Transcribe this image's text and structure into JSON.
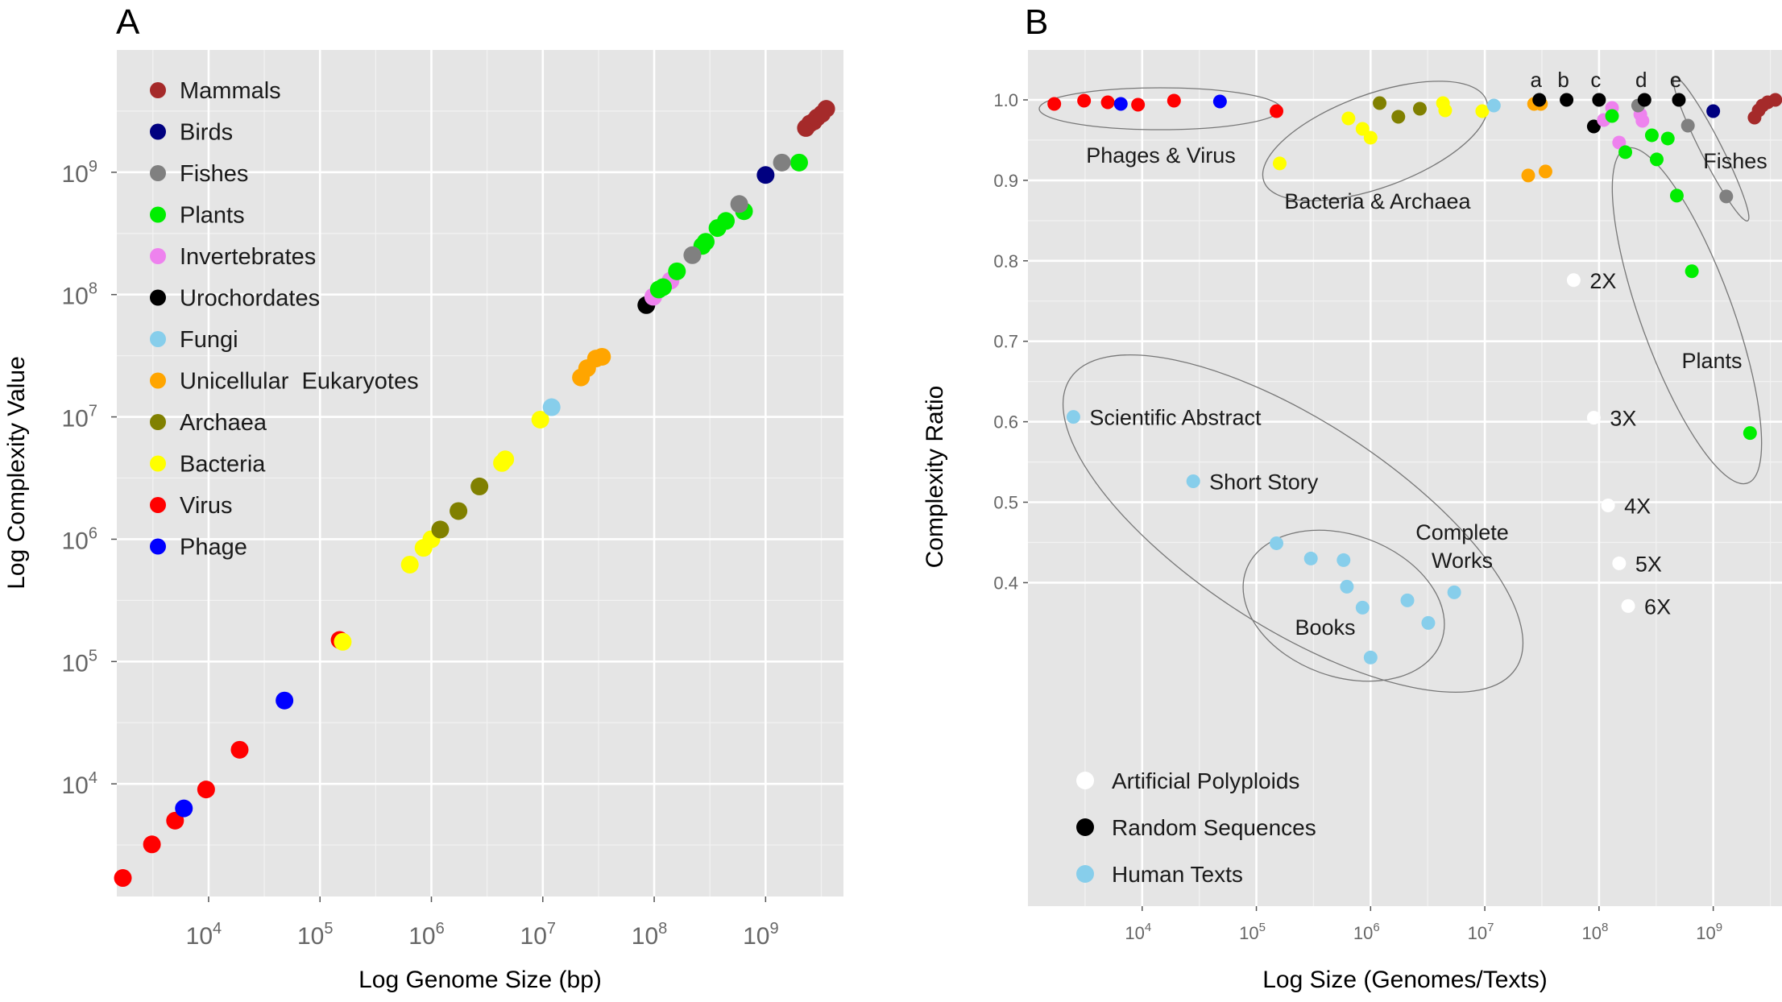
{
  "colors": {
    "Mammals": "#a52a2a",
    "Birds": "#000080",
    "Fishes": "#808080",
    "Plants": "#00ee00",
    "Invertebrates": "#ee82ee",
    "Urochordates": "#000000",
    "Fungi": "#87ceeb",
    "Unicellular Eukaryotes": "#ffa500",
    "Archaea": "#808000",
    "Bacteria": "#ffff00",
    "Virus": "#ff0000",
    "Phage": "#0000ff",
    "Artificial Polyploids": "#ffffff",
    "Random Sequences": "#000000",
    "Human Texts": "#87ceeb",
    "panel_bg": "#e5e5e5",
    "grid": "#ffffff"
  },
  "chart_data": [
    {
      "panel_label": "A",
      "type": "scatter",
      "xlabel": "Log Genome Size (bp)",
      "ylabel": "Log Complexity Value",
      "x_scale": "log10",
      "y_scale": "log10",
      "xlim": [
        1500,
        5000000000
      ],
      "ylim": [
        1200,
        10000000000
      ],
      "x_ticks": [
        {
          "value": 10000,
          "base": "10",
          "exp": "4"
        },
        {
          "value": 100000,
          "base": "10",
          "exp": "5"
        },
        {
          "value": 1000000,
          "base": "10",
          "exp": "6"
        },
        {
          "value": 10000000,
          "base": "10",
          "exp": "7"
        },
        {
          "value": 100000000,
          "base": "10",
          "exp": "8"
        },
        {
          "value": 1000000000,
          "base": "10",
          "exp": "9"
        }
      ],
      "y_ticks": [
        {
          "value": 10000,
          "base": "10",
          "exp": "4"
        },
        {
          "value": 100000,
          "base": "10",
          "exp": "5"
        },
        {
          "value": 1000000,
          "base": "10",
          "exp": "6"
        },
        {
          "value": 10000000,
          "base": "10",
          "exp": "7"
        },
        {
          "value": 100000000,
          "base": "10",
          "exp": "8"
        },
        {
          "value": 1000000000,
          "base": "10",
          "exp": "9"
        }
      ],
      "legend": {
        "placement": "top-left",
        "entries": [
          "Mammals",
          "Birds",
          "Fishes",
          "Plants",
          "Invertebrates",
          "Urochordates",
          "Fungi",
          "Unicellular  Eukaryotes",
          "Archaea",
          "Bacteria",
          "Virus",
          "Phage"
        ],
        "keys": [
          "Mammals",
          "Birds",
          "Fishes",
          "Plants",
          "Invertebrates",
          "Urochordates",
          "Fungi",
          "Unicellular Eukaryotes",
          "Archaea",
          "Bacteria",
          "Virus",
          "Phage"
        ]
      },
      "series": [
        {
          "name": "Virus",
          "points": [
            [
              1700,
              1700
            ],
            [
              3100,
              3200
            ],
            [
              5000,
              5000
            ],
            [
              9500,
              9000
            ],
            [
              19000,
              19000
            ],
            [
              150000,
              150000
            ]
          ]
        },
        {
          "name": "Phage",
          "points": [
            [
              6000,
              6300
            ],
            [
              48000,
              48000
            ]
          ]
        },
        {
          "name": "Bacteria",
          "points": [
            [
              160000,
              145000
            ],
            [
              640000,
              620000
            ],
            [
              850000,
              850000
            ],
            [
              1000000,
              1000000
            ],
            [
              4300000,
              4200000
            ],
            [
              4600000,
              4500000
            ],
            [
              9500000,
              9500000
            ]
          ]
        },
        {
          "name": "Archaea",
          "points": [
            [
              1200000,
              1200000
            ],
            [
              1750000,
              1700000
            ],
            [
              2700000,
              2700000
            ]
          ]
        },
        {
          "name": "Fungi",
          "points": [
            [
              12000000,
              12000000
            ]
          ]
        },
        {
          "name": "Unicellular Eukaryotes",
          "points": [
            [
              22000000,
              21000000
            ],
            [
              25000000,
              25000000
            ],
            [
              30000000,
              30000000
            ],
            [
              34000000,
              31000000
            ]
          ]
        },
        {
          "name": "Urochordates",
          "points": [
            [
              85000000,
              82000000
            ]
          ]
        },
        {
          "name": "Invertebrates",
          "points": [
            [
              98000000,
              96000000
            ],
            [
              140000000,
              130000000
            ]
          ]
        },
        {
          "name": "Plants",
          "points": [
            [
              110000000,
              110000000
            ],
            [
              120000000,
              115000000
            ],
            [
              160000000,
              155000000
            ],
            [
              270000000,
              250000000
            ],
            [
              290000000,
              270000000
            ],
            [
              370000000,
              350000000
            ],
            [
              440000000,
              400000000
            ],
            [
              640000000,
              480000000
            ],
            [
              2000000000,
              1200000000
            ]
          ]
        },
        {
          "name": "Fishes",
          "points": [
            [
              220000000,
              210000000
            ],
            [
              580000000,
              550000000
            ],
            [
              1400000000,
              1200000000
            ]
          ]
        },
        {
          "name": "Birds",
          "points": [
            [
              1000000000,
              950000000
            ]
          ]
        },
        {
          "name": "Mammals",
          "points": [
            [
              2300000000,
              2300000000
            ],
            [
              2500000000,
              2500000000
            ],
            [
              2700000000,
              2600000000
            ],
            [
              2900000000,
              2800000000
            ],
            [
              3200000000,
              3000000000
            ],
            [
              3500000000,
              3300000000
            ]
          ]
        }
      ]
    },
    {
      "panel_label": "B",
      "type": "scatter",
      "xlabel": "Log Size (Genomes/Texts)",
      "ylabel": "Complexity Ratio",
      "x_scale": "log10",
      "y_scale": "linear",
      "xlim": [
        1000,
        4000000000
      ],
      "ylim": [
        0,
        1.04
      ],
      "x_ticks": [
        {
          "value": 10000,
          "base": "10",
          "exp": "4"
        },
        {
          "value": 100000,
          "base": "10",
          "exp": "5"
        },
        {
          "value": 1000000,
          "base": "10",
          "exp": "6"
        },
        {
          "value": 10000000,
          "base": "10",
          "exp": "7"
        },
        {
          "value": 100000000,
          "base": "10",
          "exp": "8"
        },
        {
          "value": 1000000000,
          "base": "10",
          "exp": "9"
        }
      ],
      "y_ticks": [
        {
          "value": 0.4,
          "label": "0.4"
        },
        {
          "value": 0.5,
          "label": "0.5"
        },
        {
          "value": 0.6,
          "label": "0.6"
        },
        {
          "value": 0.7,
          "label": "0.7"
        },
        {
          "value": 0.8,
          "label": "0.8"
        },
        {
          "value": 0.9,
          "label": "0.9"
        },
        {
          "value": 1.0,
          "label": "1.0"
        }
      ],
      "legend": {
        "placement": "bottom-left",
        "entries": [
          "Artificial Polyploids",
          "Random Sequences",
          "Human Texts"
        ],
        "keys": [
          "Artificial Polyploids",
          "Random Sequences",
          "Human Texts"
        ]
      },
      "series": [
        {
          "name": "Virus",
          "points": [
            [
              1700,
              0.995
            ],
            [
              3100,
              0.999
            ],
            [
              5000,
              0.997
            ],
            [
              9200,
              0.994
            ],
            [
              19000,
              0.999
            ],
            [
              150000,
              0.986
            ]
          ]
        },
        {
          "name": "Phage",
          "points": [
            [
              6500,
              0.995
            ],
            [
              48000,
              0.998
            ]
          ]
        },
        {
          "name": "Bacteria",
          "points": [
            [
              160000,
              0.921
            ],
            [
              640000,
              0.977
            ],
            [
              850000,
              0.964
            ],
            [
              1000000,
              0.953
            ],
            [
              4300000,
              0.996
            ],
            [
              4500000,
              0.987
            ],
            [
              9500000,
              0.986
            ]
          ]
        },
        {
          "name": "Archaea",
          "points": [
            [
              1200000,
              0.996
            ],
            [
              1750000,
              0.979
            ],
            [
              2700000,
              0.989
            ]
          ]
        },
        {
          "name": "Fungi",
          "points": [
            [
              12000000,
              0.993
            ]
          ]
        },
        {
          "name": "Unicellular Eukaryotes",
          "points": [
            [
              24000000,
              0.906
            ],
            [
              34000000,
              0.911
            ],
            [
              27000000,
              0.995
            ],
            [
              31000000,
              0.995
            ]
          ]
        },
        {
          "name": "Urochordates",
          "points": [
            [
              90000000,
              0.967
            ]
          ]
        },
        {
          "name": "Invertebrates",
          "points": [
            [
              110000000,
              0.975
            ],
            [
              130000000,
              0.99
            ],
            [
              150000000,
              0.947
            ],
            [
              230000000,
              0.982
            ],
            [
              240000000,
              0.974
            ]
          ]
        },
        {
          "name": "Plants",
          "points": [
            [
              130000000,
              0.98
            ],
            [
              170000000,
              0.935
            ],
            [
              290000000,
              0.956
            ],
            [
              320000000,
              0.926
            ],
            [
              400000000,
              0.952
            ],
            [
              480000000,
              0.881
            ],
            [
              650000000,
              0.787
            ],
            [
              2100000000,
              0.586
            ]
          ]
        },
        {
          "name": "Fishes",
          "points": [
            [
              220000000,
              0.993
            ],
            [
              600000000,
              0.968
            ],
            [
              1300000000,
              0.88
            ]
          ]
        },
        {
          "name": "Birds",
          "points": [
            [
              1000000000,
              0.986
            ]
          ]
        },
        {
          "name": "Mammals",
          "points": [
            [
              2300000000,
              0.978
            ],
            [
              2500000000,
              0.987
            ],
            [
              2700000000,
              0.993
            ],
            [
              3000000000,
              0.997
            ],
            [
              3500000000,
              1.0
            ]
          ]
        },
        {
          "name": "Random Sequences",
          "points": [
            [
              30000000,
              1.0
            ],
            [
              52000000,
              1.0
            ],
            [
              100000000,
              1.0
            ],
            [
              250000000,
              1.0
            ],
            [
              500000000,
              1.0
            ]
          ]
        },
        {
          "name": "Artificial Polyploids",
          "points": [
            [
              60000000,
              0.776
            ],
            [
              90000000,
              0.605
            ],
            [
              120000000,
              0.496
            ],
            [
              150000000,
              0.424
            ],
            [
              180000000,
              0.371
            ]
          ]
        },
        {
          "name": "Human Texts",
          "points": [
            [
              2500,
              0.606
            ],
            [
              28000,
              0.526
            ],
            [
              150000,
              0.449
            ],
            [
              300000,
              0.43
            ],
            [
              580000,
              0.428
            ],
            [
              620000,
              0.395
            ],
            [
              850000,
              0.369
            ],
            [
              1000000,
              0.307
            ],
            [
              2100000,
              0.378
            ],
            [
              3200000,
              0.35
            ],
            [
              5400000,
              0.388
            ]
          ]
        }
      ],
      "point_labels": [
        {
          "text": "a",
          "x": 30000000,
          "y": 1.0
        },
        {
          "text": "b",
          "x": 52000000,
          "y": 1.0
        },
        {
          "text": "c",
          "x": 100000000,
          "y": 1.0
        },
        {
          "text": "d",
          "x": 250000000,
          "y": 1.0
        },
        {
          "text": "e",
          "x": 500000000,
          "y": 1.0
        },
        {
          "text": "2X",
          "x": 60000000,
          "y": 0.776
        },
        {
          "text": "3X",
          "x": 90000000,
          "y": 0.605
        },
        {
          "text": "4X",
          "x": 120000000,
          "y": 0.496
        },
        {
          "text": "5X",
          "x": 150000000,
          "y": 0.424
        },
        {
          "text": "6X",
          "x": 180000000,
          "y": 0.371
        },
        {
          "text": "Scientific Abstract",
          "x": 2500,
          "y": 0.606
        },
        {
          "text": "Short Story",
          "x": 28000,
          "y": 0.526
        }
      ],
      "group_labels": [
        "Phages & Virus",
        "Bacteria & Archaea",
        "Fishes",
        "Plants",
        "Books",
        "Complete",
        "Works"
      ]
    }
  ]
}
